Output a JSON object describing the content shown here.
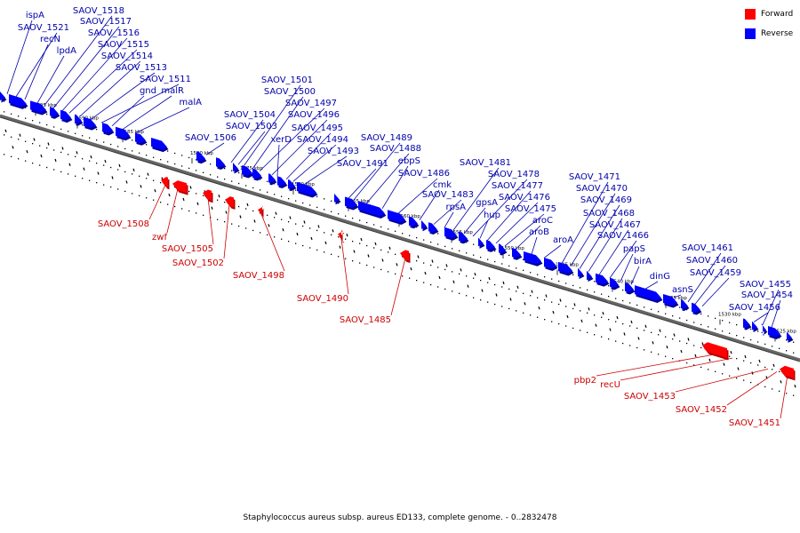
{
  "title": "Staphylococcus aureus subsp. aureus ED133, complete genome. - 0..2832478",
  "colors": {
    "forward": "#ff0000",
    "forward_dark": "#b30000",
    "reverse": "#0000ff",
    "reverse_dark": "#00009a",
    "forward_label": "#cc0000",
    "reverse_label": "#0000aa",
    "backbone": "#666666",
    "line": "#000000"
  },
  "legend": [
    {
      "label": "Forward",
      "color": "#ff0000"
    },
    {
      "label": "Reverse",
      "color": "#0000ff"
    }
  ],
  "scale_ticks": [
    "1595 kbp",
    "1590 kbp",
    "1585 kbp",
    "1580 kbp",
    "1575 kbp",
    "1570 kbp",
    "1565 kbp",
    "1560 kbp",
    "1555 kbp",
    "1550 kbp",
    "1545 kbp",
    "1540 kbp",
    "1535 kbp",
    "1530 kbp",
    "1525 kbp"
  ],
  "reverse_genes": [
    "ispA",
    "SAOV_1521",
    "recN",
    "lpdA",
    "SAOV_1518",
    "SAOV_1517",
    "SAOV_1516",
    "SAOV_1515",
    "SAOV_1514",
    "SAOV_1513",
    "SAOV_1511",
    "gnd",
    "malR",
    "malA",
    "SAOV_1506",
    "SAOV_1504",
    "SAOV_1503",
    "SAOV_1501",
    "SAOV_1500",
    "SAOV_1497",
    "SAOV_1496",
    "xerD",
    "SAOV_1495",
    "SAOV_1494",
    "SAOV_1493",
    "SAOV_1491",
    "SAOV_1489",
    "SAOV_1488",
    "ebpS",
    "SAOV_1486",
    "cmk",
    "SAOV_1483",
    "rpsA",
    "SAOV_1481",
    "gpsA",
    "SAOV_1478",
    "hup",
    "SAOV_1477",
    "SAOV_1476",
    "SAOV_1475",
    "aroC",
    "aroB",
    "aroA",
    "SAOV_1471",
    "SAOV_1470",
    "SAOV_1469",
    "SAOV_1468",
    "SAOV_1467",
    "SAOV_1466",
    "papS",
    "birA",
    "dinG",
    "asnS",
    "SAOV_1461",
    "SAOV_1460",
    "SAOV_1459",
    "SAOV_1456",
    "SAOV_1455",
    "SAOV_1454"
  ],
  "forward_genes": [
    "SAOV_1508",
    "zwf",
    "SAOV_1505",
    "SAOV_1502",
    "SAOV_1498",
    "SAOV_1490",
    "SAOV_1485",
    "pbp2",
    "recU",
    "SAOV_1453",
    "SAOV_1452",
    "SAOV_1451"
  ]
}
